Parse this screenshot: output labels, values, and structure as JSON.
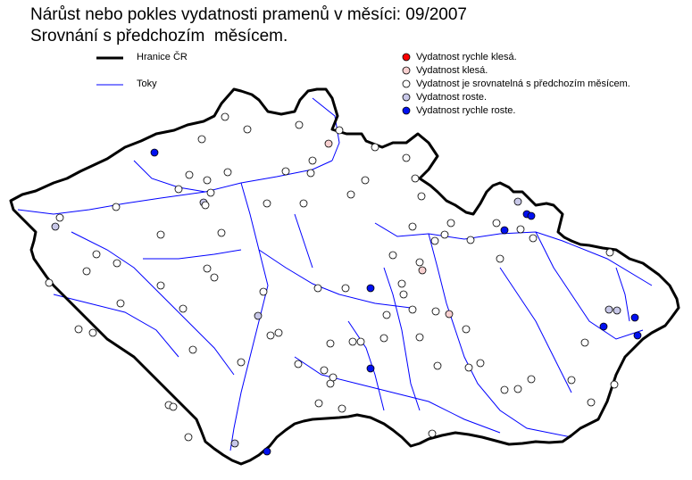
{
  "title": "Nárůst nebo pokles vydatnosti pramenů v měsíci: 09/2007",
  "subtitle": "Srovnání s předchozím  měsícem.",
  "legend_lines": [
    {
      "label": "Hranice ČR",
      "color": "#000000"
    },
    {
      "label": "Toky",
      "color": "#0000ff"
    }
  ],
  "legend_points": [
    {
      "label": "Vydatnost rychle klesá.",
      "color": "#ff0000"
    },
    {
      "label": "Vydatnost klesá.",
      "color": "#f8d0d0"
    },
    {
      "label": "Vydatnost je srovnatelná s předchozím měsícem.",
      "color": "#ffffff"
    },
    {
      "label": "Vydatnost roste.",
      "color": "#c8c8e8"
    },
    {
      "label": "Vydatnost rychle roste.",
      "color": "#0010f0"
    }
  ]
}
